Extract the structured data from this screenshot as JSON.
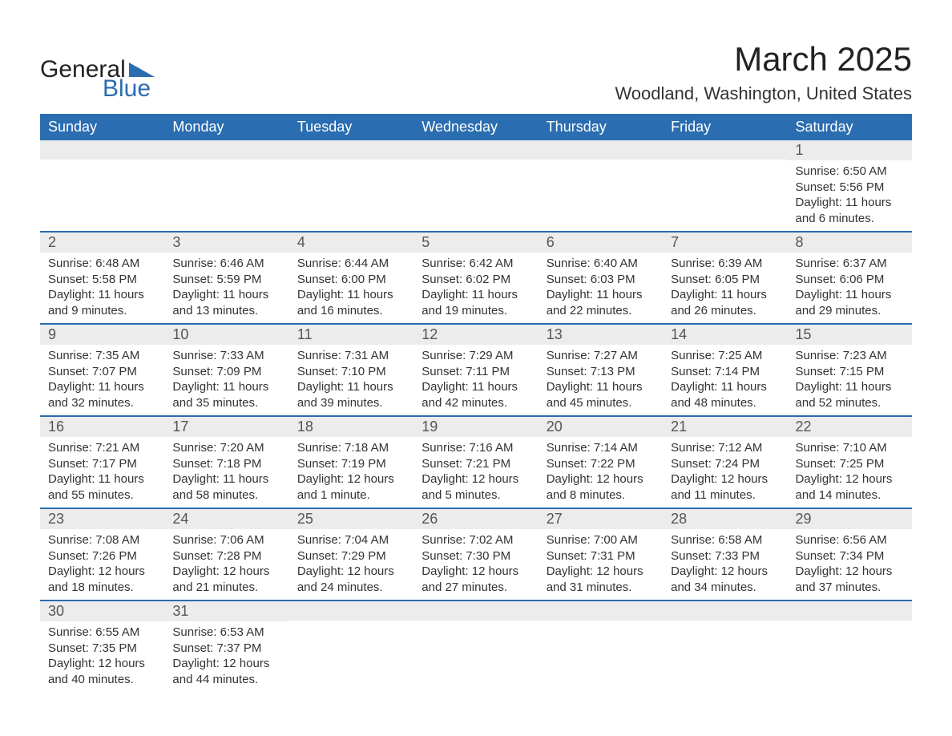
{
  "logo": {
    "text1": "General",
    "text2": "Blue",
    "triangle_color": "#2a6db0"
  },
  "title": {
    "month": "March 2025",
    "location": "Woodland, Washington, United States"
  },
  "styling": {
    "header_bg": "#2a6db0",
    "header_fg": "#ffffff",
    "daynum_bg": "#ececec",
    "daynum_fg": "#555555",
    "row_border": "#2a6db0",
    "body_fg": "#333333",
    "page_bg": "#ffffff",
    "title_fontsize": 42,
    "location_fontsize": 22,
    "header_fontsize": 18,
    "daynum_fontsize": 18,
    "body_fontsize": 15
  },
  "weekdays": [
    "Sunday",
    "Monday",
    "Tuesday",
    "Wednesday",
    "Thursday",
    "Friday",
    "Saturday"
  ],
  "weeks": [
    [
      null,
      null,
      null,
      null,
      null,
      null,
      {
        "n": "1",
        "sunrise": "Sunrise: 6:50 AM",
        "sunset": "Sunset: 5:56 PM",
        "daylight": "Daylight: 11 hours and 6 minutes."
      }
    ],
    [
      {
        "n": "2",
        "sunrise": "Sunrise: 6:48 AM",
        "sunset": "Sunset: 5:58 PM",
        "daylight": "Daylight: 11 hours and 9 minutes."
      },
      {
        "n": "3",
        "sunrise": "Sunrise: 6:46 AM",
        "sunset": "Sunset: 5:59 PM",
        "daylight": "Daylight: 11 hours and 13 minutes."
      },
      {
        "n": "4",
        "sunrise": "Sunrise: 6:44 AM",
        "sunset": "Sunset: 6:00 PM",
        "daylight": "Daylight: 11 hours and 16 minutes."
      },
      {
        "n": "5",
        "sunrise": "Sunrise: 6:42 AM",
        "sunset": "Sunset: 6:02 PM",
        "daylight": "Daylight: 11 hours and 19 minutes."
      },
      {
        "n": "6",
        "sunrise": "Sunrise: 6:40 AM",
        "sunset": "Sunset: 6:03 PM",
        "daylight": "Daylight: 11 hours and 22 minutes."
      },
      {
        "n": "7",
        "sunrise": "Sunrise: 6:39 AM",
        "sunset": "Sunset: 6:05 PM",
        "daylight": "Daylight: 11 hours and 26 minutes."
      },
      {
        "n": "8",
        "sunrise": "Sunrise: 6:37 AM",
        "sunset": "Sunset: 6:06 PM",
        "daylight": "Daylight: 11 hours and 29 minutes."
      }
    ],
    [
      {
        "n": "9",
        "sunrise": "Sunrise: 7:35 AM",
        "sunset": "Sunset: 7:07 PM",
        "daylight": "Daylight: 11 hours and 32 minutes."
      },
      {
        "n": "10",
        "sunrise": "Sunrise: 7:33 AM",
        "sunset": "Sunset: 7:09 PM",
        "daylight": "Daylight: 11 hours and 35 minutes."
      },
      {
        "n": "11",
        "sunrise": "Sunrise: 7:31 AM",
        "sunset": "Sunset: 7:10 PM",
        "daylight": "Daylight: 11 hours and 39 minutes."
      },
      {
        "n": "12",
        "sunrise": "Sunrise: 7:29 AM",
        "sunset": "Sunset: 7:11 PM",
        "daylight": "Daylight: 11 hours and 42 minutes."
      },
      {
        "n": "13",
        "sunrise": "Sunrise: 7:27 AM",
        "sunset": "Sunset: 7:13 PM",
        "daylight": "Daylight: 11 hours and 45 minutes."
      },
      {
        "n": "14",
        "sunrise": "Sunrise: 7:25 AM",
        "sunset": "Sunset: 7:14 PM",
        "daylight": "Daylight: 11 hours and 48 minutes."
      },
      {
        "n": "15",
        "sunrise": "Sunrise: 7:23 AM",
        "sunset": "Sunset: 7:15 PM",
        "daylight": "Daylight: 11 hours and 52 minutes."
      }
    ],
    [
      {
        "n": "16",
        "sunrise": "Sunrise: 7:21 AM",
        "sunset": "Sunset: 7:17 PM",
        "daylight": "Daylight: 11 hours and 55 minutes."
      },
      {
        "n": "17",
        "sunrise": "Sunrise: 7:20 AM",
        "sunset": "Sunset: 7:18 PM",
        "daylight": "Daylight: 11 hours and 58 minutes."
      },
      {
        "n": "18",
        "sunrise": "Sunrise: 7:18 AM",
        "sunset": "Sunset: 7:19 PM",
        "daylight": "Daylight: 12 hours and 1 minute."
      },
      {
        "n": "19",
        "sunrise": "Sunrise: 7:16 AM",
        "sunset": "Sunset: 7:21 PM",
        "daylight": "Daylight: 12 hours and 5 minutes."
      },
      {
        "n": "20",
        "sunrise": "Sunrise: 7:14 AM",
        "sunset": "Sunset: 7:22 PM",
        "daylight": "Daylight: 12 hours and 8 minutes."
      },
      {
        "n": "21",
        "sunrise": "Sunrise: 7:12 AM",
        "sunset": "Sunset: 7:24 PM",
        "daylight": "Daylight: 12 hours and 11 minutes."
      },
      {
        "n": "22",
        "sunrise": "Sunrise: 7:10 AM",
        "sunset": "Sunset: 7:25 PM",
        "daylight": "Daylight: 12 hours and 14 minutes."
      }
    ],
    [
      {
        "n": "23",
        "sunrise": "Sunrise: 7:08 AM",
        "sunset": "Sunset: 7:26 PM",
        "daylight": "Daylight: 12 hours and 18 minutes."
      },
      {
        "n": "24",
        "sunrise": "Sunrise: 7:06 AM",
        "sunset": "Sunset: 7:28 PM",
        "daylight": "Daylight: 12 hours and 21 minutes."
      },
      {
        "n": "25",
        "sunrise": "Sunrise: 7:04 AM",
        "sunset": "Sunset: 7:29 PM",
        "daylight": "Daylight: 12 hours and 24 minutes."
      },
      {
        "n": "26",
        "sunrise": "Sunrise: 7:02 AM",
        "sunset": "Sunset: 7:30 PM",
        "daylight": "Daylight: 12 hours and 27 minutes."
      },
      {
        "n": "27",
        "sunrise": "Sunrise: 7:00 AM",
        "sunset": "Sunset: 7:31 PM",
        "daylight": "Daylight: 12 hours and 31 minutes."
      },
      {
        "n": "28",
        "sunrise": "Sunrise: 6:58 AM",
        "sunset": "Sunset: 7:33 PM",
        "daylight": "Daylight: 12 hours and 34 minutes."
      },
      {
        "n": "29",
        "sunrise": "Sunrise: 6:56 AM",
        "sunset": "Sunset: 7:34 PM",
        "daylight": "Daylight: 12 hours and 37 minutes."
      }
    ],
    [
      {
        "n": "30",
        "sunrise": "Sunrise: 6:55 AM",
        "sunset": "Sunset: 7:35 PM",
        "daylight": "Daylight: 12 hours and 40 minutes."
      },
      {
        "n": "31",
        "sunrise": "Sunrise: 6:53 AM",
        "sunset": "Sunset: 7:37 PM",
        "daylight": "Daylight: 12 hours and 44 minutes."
      },
      null,
      null,
      null,
      null,
      null
    ]
  ]
}
